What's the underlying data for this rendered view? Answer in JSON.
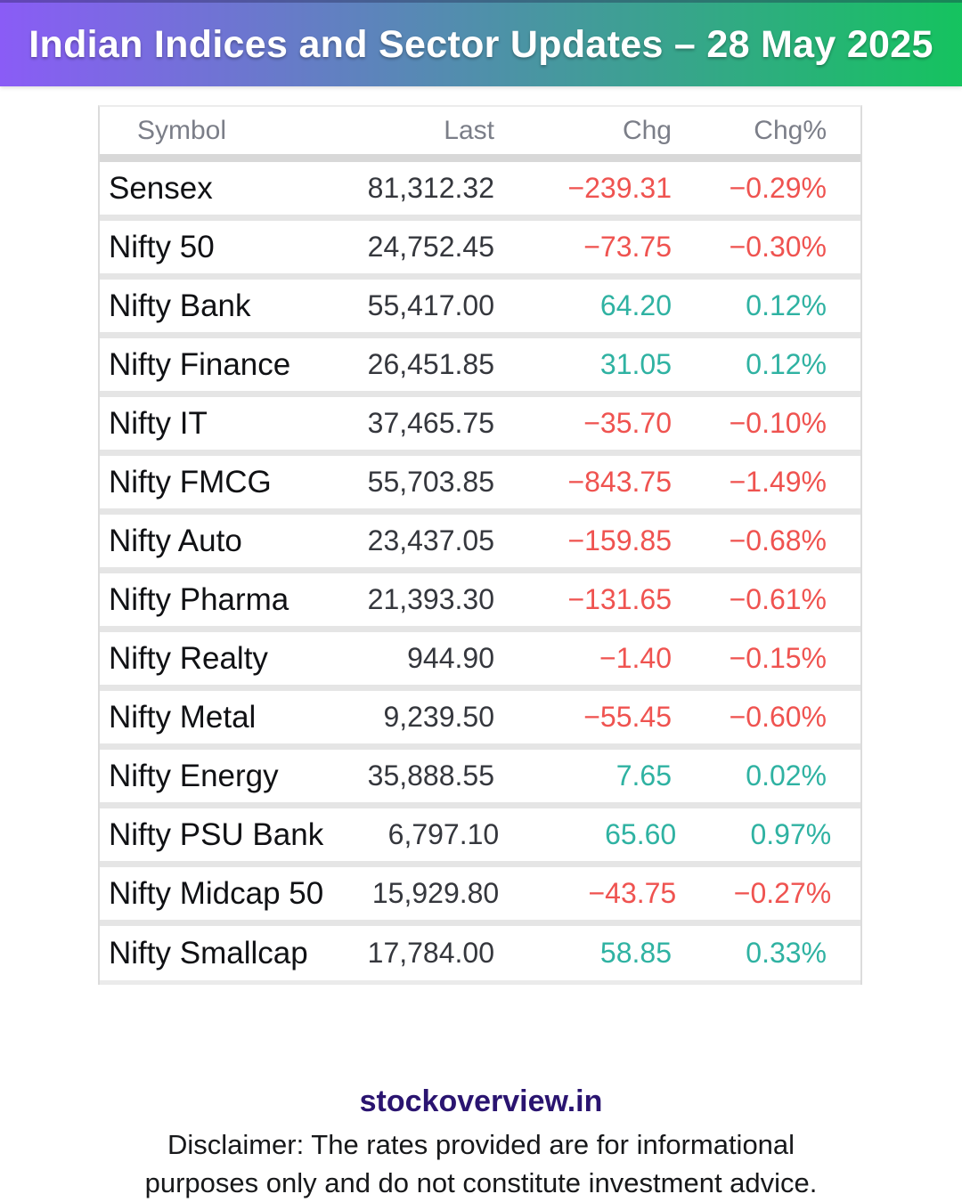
{
  "banner": {
    "title": "Indian Indices and Sector Updates – 28 May 2025"
  },
  "chart_data": {
    "type": "table",
    "title": "Indian Indices and Sector Updates – 28 May 2025",
    "columns": [
      "Symbol",
      "Last",
      "Chg",
      "Chg%"
    ],
    "rows": [
      [
        "Sensex",
        "81,312.32",
        "−239.31",
        "−0.29%"
      ],
      [
        "Nifty 50",
        "24,752.45",
        "−73.75",
        "−0.30%"
      ],
      [
        "Nifty Bank",
        "55,417.00",
        "64.20",
        "0.12%"
      ],
      [
        "Nifty Finance",
        "26,451.85",
        "31.05",
        "0.12%"
      ],
      [
        "Nifty IT",
        "37,465.75",
        "−35.70",
        "−0.10%"
      ],
      [
        "Nifty FMCG",
        "55,703.85",
        "−843.75",
        "−1.49%"
      ],
      [
        "Nifty Auto",
        "23,437.05",
        "−159.85",
        "−0.68%"
      ],
      [
        "Nifty Pharma",
        "21,393.30",
        "−131.65",
        "−0.61%"
      ],
      [
        "Nifty Realty",
        "944.90",
        "−1.40",
        "−0.15%"
      ],
      [
        "Nifty Metal",
        "9,239.50",
        "−55.45",
        "−0.60%"
      ],
      [
        "Nifty Energy",
        "35,888.55",
        "7.65",
        "0.02%"
      ],
      [
        "Nifty PSU Bank",
        "6,797.10",
        "65.60",
        "0.97%"
      ],
      [
        "Nifty Midcap 50",
        "15,929.80",
        "−43.75",
        "−0.27%"
      ],
      [
        "Nifty Smallcap",
        "17,784.00",
        "58.85",
        "0.33%"
      ]
    ]
  },
  "colors": {
    "gradient_from": "#8a5cf6",
    "gradient_to": "#15c35f",
    "up": "#2fb2a2",
    "down": "#ef5350",
    "header_text": "#7b7e88"
  },
  "footer": {
    "site": "stockoverview.in",
    "disclaimer_lines": [
      "Disclaimer: The rates provided are for informational",
      "purposes only and do not constitute investment advice."
    ]
  }
}
